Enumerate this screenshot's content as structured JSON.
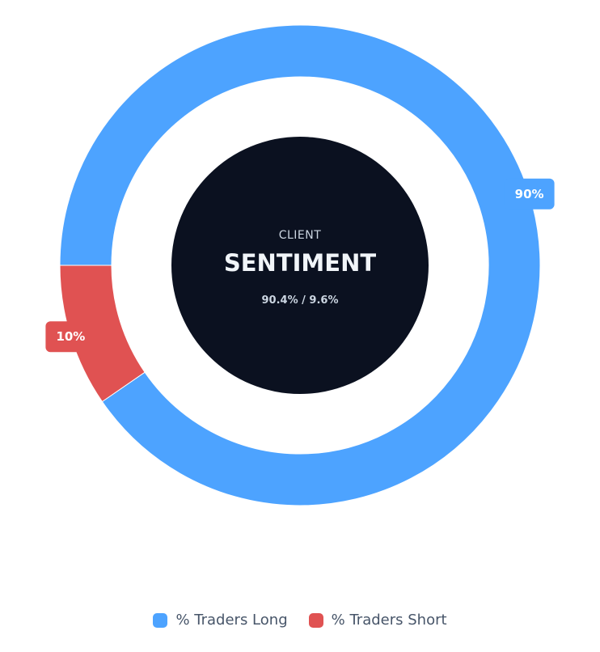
{
  "chart_data": {
    "type": "pie",
    "variant": "doughnut",
    "series": [
      {
        "name": "% Traders Long",
        "value": 90.4,
        "label": "90%",
        "color": "#4da3ff"
      },
      {
        "name": "% Traders Short",
        "value": 9.6,
        "label": "10%",
        "color": "#e05252"
      }
    ],
    "center": {
      "overline": "CLIENT",
      "title": "SENTIMENT",
      "subtitle": "90.4% / 9.6%",
      "color": "#0b1120"
    },
    "legend_placement": "bottom"
  }
}
